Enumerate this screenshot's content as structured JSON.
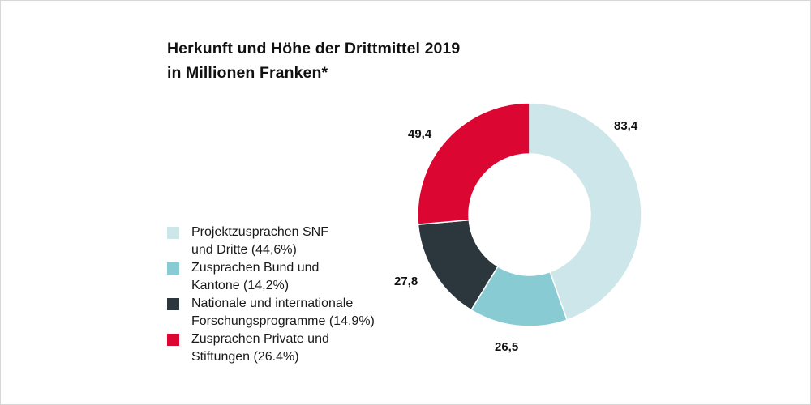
{
  "chart_data": {
    "type": "pie",
    "variant": "donut",
    "title": "Herkunft und Höhe der Drittmittel 2019",
    "subtitle": "in Millionen Franken*",
    "legend_position": "left",
    "slices": [
      {
        "name": "Projektzusprachen SNF und Dritte",
        "legend_text": "Projektzusprachen SNF\nund Dritte (44,6%)",
        "value": 83.4,
        "label": "83,4",
        "percent": 44.6,
        "color": "#cde6ea"
      },
      {
        "name": "Zusprachen Bund und Kantone",
        "legend_text": "Zusprachen Bund und\nKantone (14,2%)",
        "value": 26.5,
        "label": "26,5",
        "percent": 14.2,
        "color": "#88cbd3"
      },
      {
        "name": "Nationale und internationale Forschungsprogramme",
        "legend_text": "Nationale und internationale\nForschungsprogramme (14,9%)",
        "value": 27.8,
        "label": "27,8",
        "percent": 14.9,
        "color": "#2b363d"
      },
      {
        "name": "Zusprachen Private und Stiftungen",
        "legend_text": "Zusprachen Private und\nStiftungen (26.4%)",
        "value": 49.4,
        "label": "49,4",
        "percent": 26.4,
        "color": "#dc0632"
      }
    ]
  }
}
